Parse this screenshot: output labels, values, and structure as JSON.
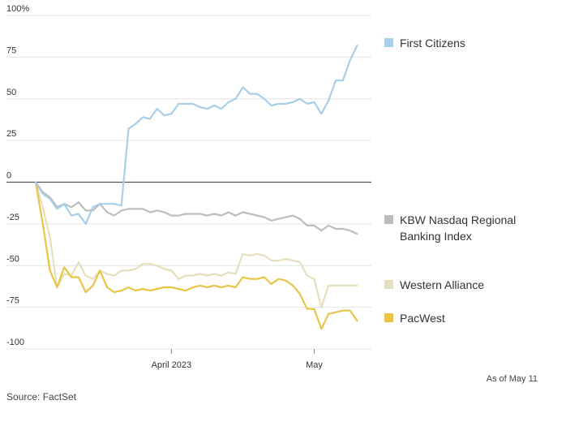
{
  "chart_data": {
    "type": "line",
    "ylim": [
      -100,
      100
    ],
    "yticks": [
      100,
      75,
      50,
      25,
      0,
      -25,
      -50,
      -75,
      -100
    ],
    "ytick_labels": [
      "100%",
      "75",
      "50",
      "25",
      "0",
      "-25",
      "-50",
      "-75",
      "-100"
    ],
    "xlim": [
      0,
      47
    ],
    "xticks": [
      {
        "x": 19,
        "label": "April 2023"
      },
      {
        "x": 39,
        "label": "May"
      }
    ],
    "series": [
      {
        "name": "First Citizens",
        "color": "#a7cfe8",
        "values": [
          0,
          -7,
          -10,
          -16,
          -13,
          -20,
          -19,
          -25,
          -15,
          -13,
          -13,
          -13,
          -14,
          32,
          35,
          39,
          38,
          44,
          40,
          41,
          47,
          47,
          47,
          45,
          44,
          46,
          44,
          48,
          50,
          57,
          53,
          53,
          50,
          46,
          47,
          47,
          48,
          50,
          47,
          48,
          41,
          49,
          61,
          61,
          73,
          82
        ]
      },
      {
        "name": "KBW Nasdaq Regional Banking Index",
        "color": "#bdbdbd",
        "values": [
          0,
          -6,
          -9,
          -15,
          -13,
          -15,
          -12,
          -17,
          -17,
          -13,
          -18,
          -20,
          -17,
          -16,
          -16,
          -16,
          -18,
          -17,
          -18,
          -20,
          -20,
          -19,
          -19,
          -19,
          -20,
          -19,
          -20,
          -18,
          -20,
          -18,
          -19,
          -20,
          -21,
          -23,
          -22,
          -21,
          -20,
          -22,
          -26,
          -26,
          -29,
          -26,
          -28,
          -28,
          -29,
          -31
        ]
      },
      {
        "name": "Western Alliance",
        "color": "#e6dfbd",
        "values": [
          0,
          -15,
          -33,
          -63,
          -55,
          -56,
          -48,
          -56,
          -58,
          -53,
          -55,
          -56,
          -53,
          -53,
          -52,
          -49,
          -49,
          -50,
          -52,
          -53,
          -58,
          -56,
          -56,
          -55,
          -56,
          -55,
          -56,
          -54,
          -55,
          -43,
          -44,
          -43,
          -44,
          -47,
          -47,
          -46,
          -47,
          -48,
          -56,
          -58,
          -75,
          -62,
          -62,
          -62,
          -62,
          -62
        ]
      },
      {
        "name": "PacWest",
        "color": "#e8c547",
        "values": [
          0,
          -25,
          -53,
          -63,
          -51,
          -57,
          -57,
          -66,
          -62,
          -53,
          -63,
          -66,
          -65,
          -63,
          -65,
          -64,
          -65,
          -64,
          -63,
          -63,
          -64,
          -65,
          -63,
          -62,
          -63,
          -62,
          -63,
          -62,
          -63,
          -57,
          -58,
          -58,
          -57,
          -61,
          -58,
          -59,
          -62,
          -67,
          -76,
          -76,
          -88,
          -79,
          -78,
          -77,
          -77,
          -83
        ]
      }
    ],
    "legend": {
      "placement": "right"
    },
    "grid": true,
    "zero_line": true
  },
  "footer": {
    "as_of": "As of May 11",
    "source": "Source: FactSet"
  }
}
